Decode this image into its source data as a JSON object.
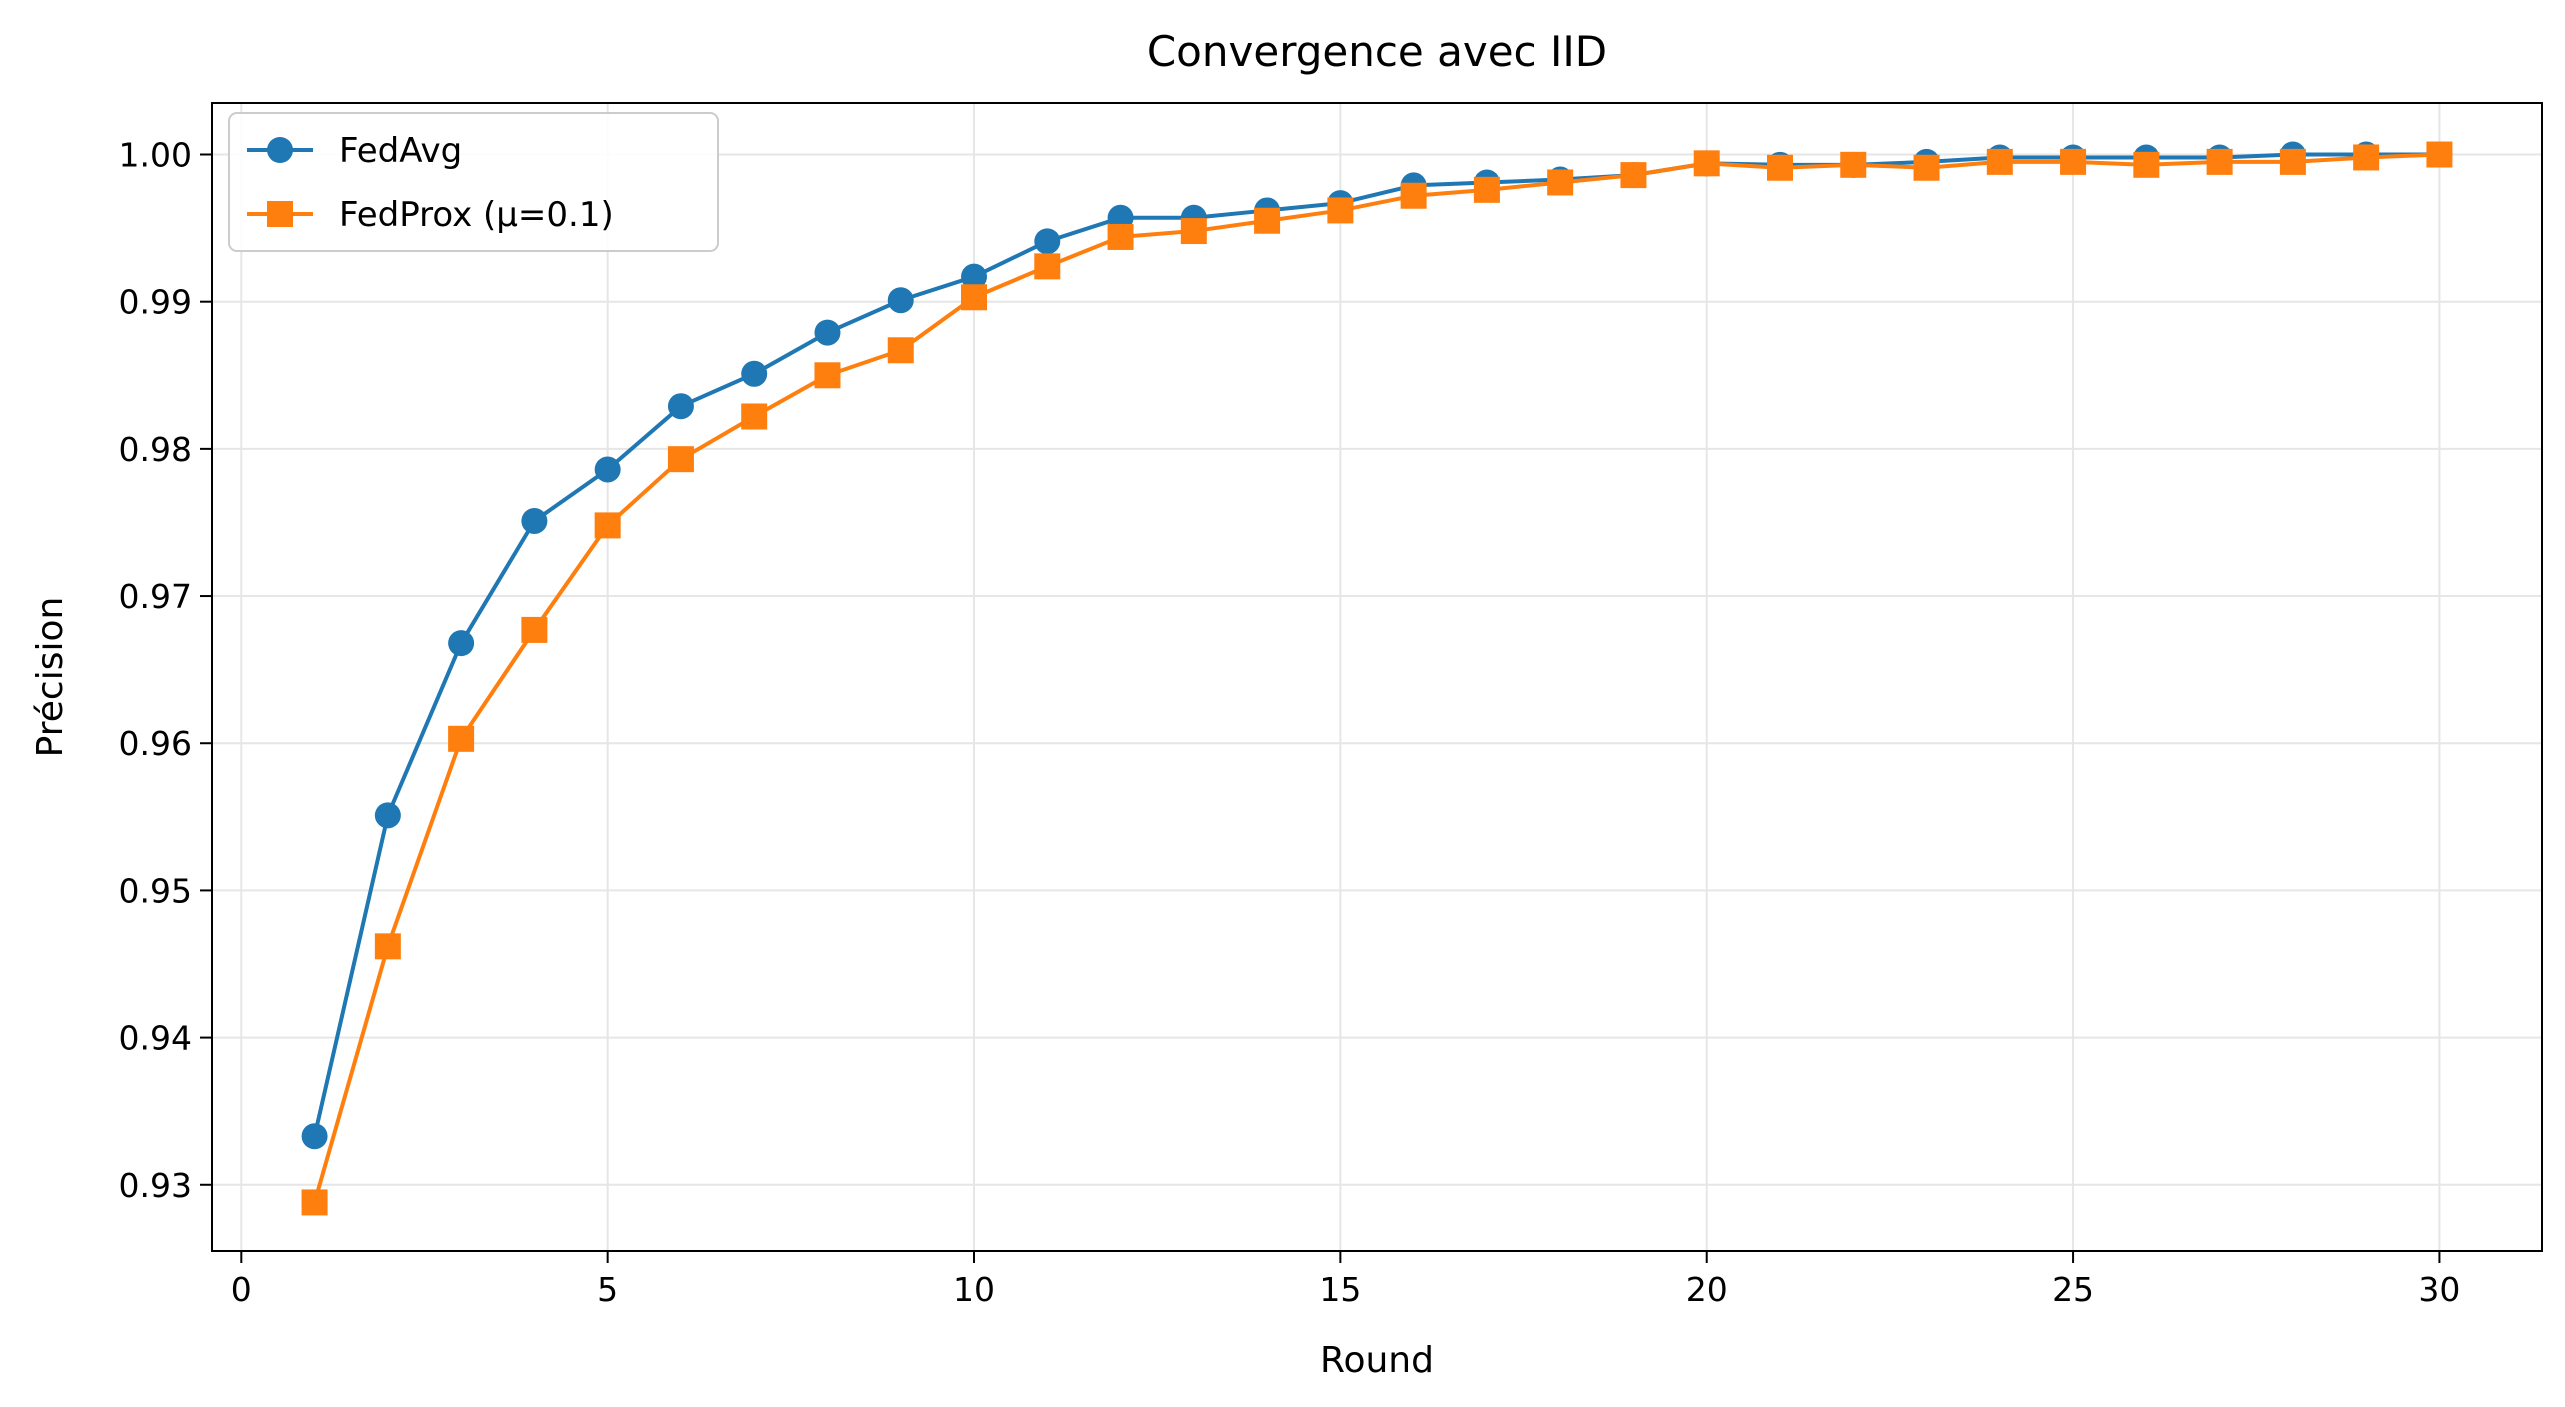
{
  "chart_data": {
    "type": "line",
    "title": "Convergence avec IID",
    "xlabel": "Round",
    "ylabel": "Précision",
    "xlim": [
      -0.4,
      31.4
    ],
    "ylim": [
      0.9255,
      1.0035
    ],
    "xticks": [
      0,
      5,
      10,
      15,
      20,
      25,
      30
    ],
    "xtick_labels": [
      "0",
      "5",
      "10",
      "15",
      "20",
      "25",
      "30"
    ],
    "yticks": [
      0.93,
      0.94,
      0.95,
      0.96,
      0.97,
      0.98,
      0.99,
      1.0
    ],
    "ytick_labels": [
      "0.93",
      "0.94",
      "0.95",
      "0.96",
      "0.97",
      "0.98",
      "0.99",
      "1.00"
    ],
    "grid": true,
    "legend_position": "upper-left",
    "x": [
      1,
      2,
      3,
      4,
      5,
      6,
      7,
      8,
      9,
      10,
      11,
      12,
      13,
      14,
      15,
      16,
      17,
      18,
      19,
      20,
      21,
      22,
      23,
      24,
      25,
      26,
      27,
      28,
      29,
      30
    ],
    "series": [
      {
        "name": "FedAvg",
        "color": "#1f77b4",
        "marker": "circle",
        "values": [
          0.9333,
          0.9551,
          0.9668,
          0.9751,
          0.9786,
          0.9829,
          0.9851,
          0.9879,
          0.9901,
          0.9917,
          0.9941,
          0.9957,
          0.9957,
          0.9962,
          0.9967,
          0.9979,
          0.9981,
          0.9983,
          0.9986,
          0.9994,
          0.9993,
          0.9993,
          0.9995,
          0.9998,
          0.9998,
          0.9998,
          0.9998,
          1.0,
          1.0,
          1.0
        ]
      },
      {
        "name": "FedProx (μ=0.1)",
        "color": "#ff7f0e",
        "marker": "square",
        "values": [
          0.9288,
          0.9462,
          0.9603,
          0.9677,
          0.9748,
          0.9793,
          0.9822,
          0.985,
          0.9867,
          0.9903,
          0.9924,
          0.9944,
          0.9948,
          0.9955,
          0.9962,
          0.9972,
          0.9976,
          0.9981,
          0.9986,
          0.9994,
          0.9991,
          0.9993,
          0.9991,
          0.9995,
          0.9995,
          0.9993,
          0.9995,
          0.9995,
          0.9998,
          1.0
        ]
      }
    ]
  }
}
